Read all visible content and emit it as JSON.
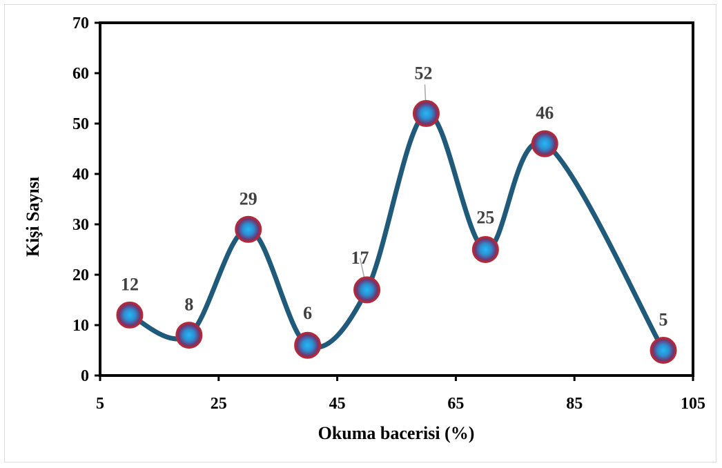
{
  "chart_data": {
    "type": "line",
    "title": "",
    "xlabel": "Okuma bacerisi (%)",
    "ylabel": "Kişi Sayısı",
    "xlim": [
      5,
      105
    ],
    "ylim": [
      0,
      70
    ],
    "x_ticks": [
      "5",
      "25",
      "45",
      "65",
      "85",
      "105"
    ],
    "y_ticks": [
      "0",
      "10",
      "20",
      "30",
      "40",
      "50",
      "60",
      "70"
    ],
    "smooth": true,
    "grid": false,
    "series": [
      {
        "x": [
          10,
          20,
          30,
          40,
          50,
          60,
          70,
          80,
          100
        ],
        "values": [
          12,
          8,
          29,
          6,
          17,
          52,
          25,
          46,
          5
        ],
        "data_labels": [
          "12",
          "8",
          "29",
          "6",
          "17",
          "52",
          "25",
          "46",
          "5"
        ]
      }
    ],
    "colors": {
      "line": "#1f5a7a",
      "marker_fill_center": "#29b6f6",
      "marker_fill_edge": "#7b2a55",
      "marker_border": "#b22a3a",
      "label": "#404040"
    }
  }
}
